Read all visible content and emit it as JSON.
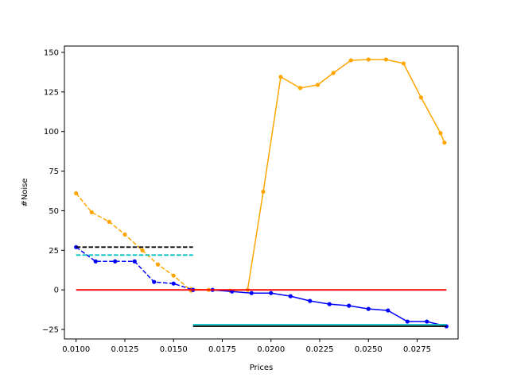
{
  "chart_data": {
    "type": "line",
    "title": "",
    "xlabel": "Prices",
    "ylabel": "#Noise",
    "xlim": [
      0.0094,
      0.0296
    ],
    "ylim": [
      -31,
      154
    ],
    "xticks": [
      0.01,
      0.0125,
      0.015,
      0.0175,
      0.02,
      0.0225,
      0.025,
      0.0275
    ],
    "xtick_labels": [
      "0.0100",
      "0.0125",
      "0.0150",
      "0.0175",
      "0.0200",
      "0.0225",
      "0.0250",
      "0.0275"
    ],
    "yticks": [
      -25,
      0,
      25,
      50,
      75,
      100,
      125,
      150
    ],
    "ytick_labels": [
      "−25",
      "0",
      "25",
      "50",
      "75",
      "100",
      "125",
      "150"
    ],
    "grid": false,
    "series": [
      {
        "color": "#ffa500",
        "style": "dashed",
        "marker": true,
        "x": [
          0.01,
          0.0108,
          0.0117,
          0.0125,
          0.0134,
          0.0142,
          0.015,
          0.0159
        ],
        "y": [
          61,
          49,
          43,
          35,
          25,
          16,
          9,
          -0.5
        ]
      },
      {
        "color": "#ffa500",
        "style": "solid",
        "marker": true,
        "x": [
          0.0159,
          0.0168,
          0.0179,
          0.0188,
          0.0196,
          0.0205,
          0.0215,
          0.0224,
          0.0232,
          0.0241,
          0.025,
          0.0259,
          0.0268,
          0.0277,
          0.0287,
          0.0289
        ],
        "y": [
          0.5,
          0,
          -0.5,
          0,
          62,
          134.5,
          127.5,
          129.5,
          137,
          145,
          145.5,
          145.5,
          143,
          121.5,
          99,
          93
        ]
      },
      {
        "color": "#0000ff",
        "style": "dashed",
        "marker": true,
        "x": [
          0.01,
          0.011,
          0.012,
          0.013,
          0.014,
          0.015,
          0.016
        ],
        "y": [
          27,
          18,
          18,
          18,
          5,
          4,
          0
        ]
      },
      {
        "color": "#0000ff",
        "style": "solid",
        "marker": true,
        "x": [
          0.016,
          0.017,
          0.018,
          0.019,
          0.02,
          0.021,
          0.022,
          0.023,
          0.024,
          0.025,
          0.026,
          0.027,
          0.028,
          0.029
        ],
        "y": [
          0,
          0,
          -1,
          -2,
          -2,
          -4,
          -7,
          -9,
          -10,
          -12,
          -13,
          -20,
          -20,
          -23
        ]
      },
      {
        "color": "#000000",
        "style": "dashed",
        "marker": false,
        "x": [
          0.01,
          0.016
        ],
        "y": [
          27,
          27
        ]
      },
      {
        "color": "#00bfbf",
        "style": "dashed",
        "marker": false,
        "x": [
          0.01,
          0.016
        ],
        "y": [
          22,
          22
        ]
      },
      {
        "color": "#ff0000",
        "style": "solid",
        "marker": false,
        "x": [
          0.01,
          0.029
        ],
        "y": [
          0,
          0
        ]
      },
      {
        "color": "#00bfbf",
        "style": "solid",
        "marker": false,
        "x": [
          0.016,
          0.029
        ],
        "y": [
          -22,
          -22
        ]
      },
      {
        "color": "#000000",
        "style": "solid",
        "marker": false,
        "x": [
          0.016,
          0.029
        ],
        "y": [
          -23,
          -23
        ]
      }
    ]
  }
}
